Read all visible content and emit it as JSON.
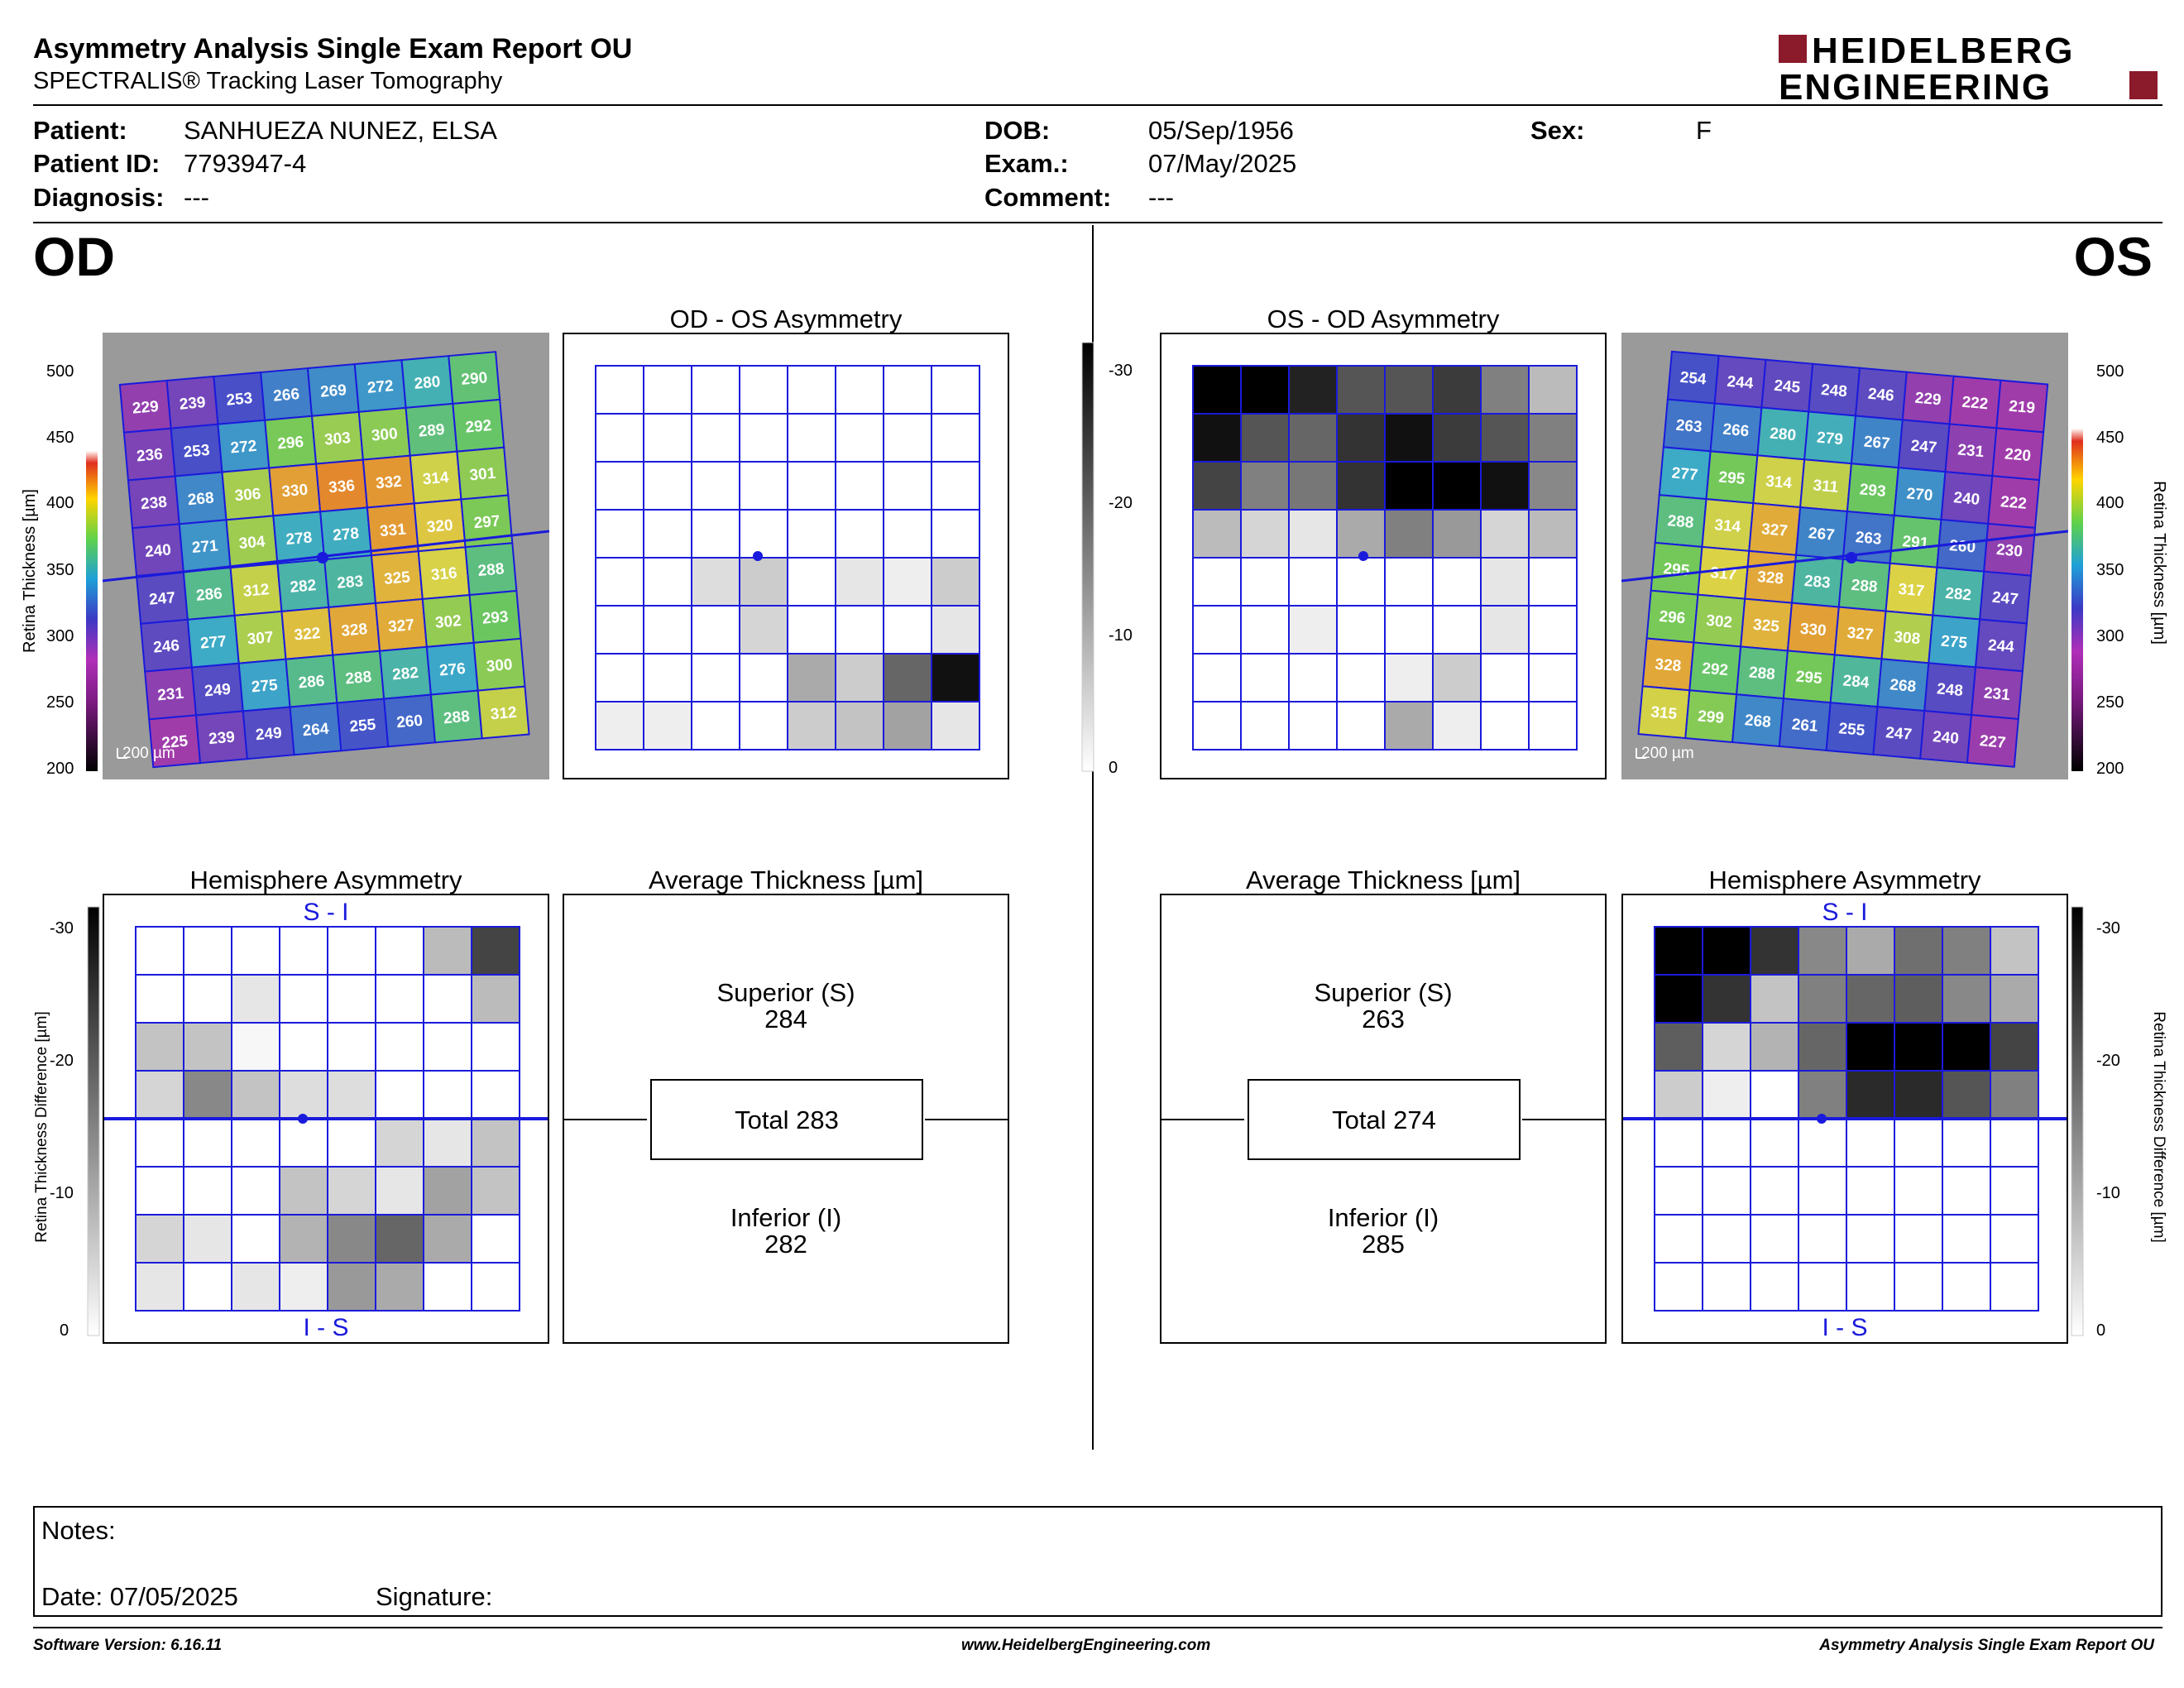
{
  "header": {
    "title": "Asymmetry Analysis Single Exam Report OU",
    "subtitle": "SPECTRALIS® Tracking Laser Tomography",
    "logo_line1": "HEIDELBERG",
    "logo_line2": "ENGINEERING"
  },
  "patient": {
    "patient_label": "Patient:",
    "patient_value": "SANHUEZA NUNEZ, ELSA",
    "id_label": "Patient ID:",
    "id_value": "7793947-4",
    "diagnosis_label": "Diagnosis:",
    "diagnosis_value": "---",
    "dob_label": "DOB:",
    "dob_value": "05/Sep/1956",
    "exam_label": "Exam.:",
    "exam_value": "07/May/2025",
    "comment_label": "Comment:",
    "comment_value": "---",
    "sex_label": "Sex:",
    "sex_value": "F"
  },
  "eyes": {
    "od": "OD",
    "os": "OS"
  },
  "panels": {
    "od_os_title": "OD - OS Asymmetry",
    "os_od_title": "OS - OD Asymmetry",
    "hemi_title": "Hemisphere Asymmetry",
    "avg_title": "Average Thickness [µm]",
    "si_label": "S - I",
    "is_label": "I - S",
    "scale_label": "200 µm"
  },
  "scales": {
    "thickness_axis_label": "Retina Thickness [µm]",
    "thickness_ticks": [
      "500",
      "450",
      "400",
      "350",
      "300",
      "250",
      "200"
    ],
    "diff_axis_label": "Retina Thickness Difference [µm]",
    "diff_ticks": [
      "-30",
      "-20",
      "-10",
      "0"
    ]
  },
  "od_thickness_grid": [
    [
      "229",
      "239",
      "253",
      "266",
      "269",
      "272",
      "280",
      "290"
    ],
    [
      "236",
      "253",
      "272",
      "296",
      "303",
      "300",
      "289",
      "292"
    ],
    [
      "238",
      "268",
      "306",
      "330",
      "336",
      "332",
      "314",
      "301"
    ],
    [
      "240",
      "271",
      "304",
      "278",
      "278",
      "331",
      "320",
      "297"
    ],
    [
      "247",
      "286",
      "312",
      "282",
      "283",
      "325",
      "316",
      "288"
    ],
    [
      "246",
      "277",
      "307",
      "322",
      "328",
      "327",
      "302",
      "293"
    ],
    [
      "231",
      "249",
      "275",
      "286",
      "288",
      "282",
      "276",
      "300"
    ],
    [
      "225",
      "239",
      "249",
      "264",
      "255",
      "260",
      "288",
      "312"
    ]
  ],
  "os_thickness_grid": [
    [
      "254",
      "244",
      "245",
      "248",
      "246",
      "229",
      "222",
      "219"
    ],
    [
      "263",
      "266",
      "280",
      "279",
      "267",
      "247",
      "231",
      "220"
    ],
    [
      "277",
      "295",
      "314",
      "311",
      "293",
      "270",
      "240",
      "222"
    ],
    [
      "288",
      "314",
      "327",
      "267",
      "263",
      "291",
      "260",
      "230"
    ],
    [
      "295",
      "317",
      "328",
      "283",
      "288",
      "317",
      "282",
      "247"
    ],
    [
      "296",
      "302",
      "325",
      "330",
      "327",
      "308",
      "275",
      "244"
    ],
    [
      "328",
      "292",
      "288",
      "295",
      "284",
      "268",
      "248",
      "231"
    ],
    [
      "315",
      "299",
      "268",
      "261",
      "255",
      "247",
      "240",
      "227"
    ]
  ],
  "od_os_diff": [
    [
      0,
      0,
      0,
      0,
      0,
      0,
      0,
      0
    ],
    [
      0,
      0,
      0,
      0,
      0,
      0,
      0,
      0
    ],
    [
      0,
      0,
      0,
      0,
      0,
      0,
      0,
      0
    ],
    [
      0,
      0,
      0,
      0,
      0,
      0,
      0,
      0
    ],
    [
      0,
      0,
      4,
      6,
      0,
      3,
      2,
      6
    ],
    [
      0,
      0,
      0,
      5,
      0,
      0,
      0,
      3
    ],
    [
      0,
      0,
      0,
      0,
      10,
      6,
      18,
      28
    ],
    [
      2,
      2,
      0,
      0,
      6,
      7,
      11,
      3
    ]
  ],
  "os_od_diff": [
    [
      30,
      30,
      26,
      20,
      20,
      23,
      15,
      8
    ],
    [
      28,
      20,
      18,
      24,
      28,
      23,
      20,
      15
    ],
    [
      22,
      15,
      16,
      24,
      30,
      30,
      28,
      14
    ],
    [
      8,
      5,
      3,
      10,
      15,
      12,
      5,
      8
    ],
    [
      0,
      0,
      0,
      0,
      0,
      0,
      3,
      0
    ],
    [
      0,
      0,
      2,
      0,
      0,
      0,
      3,
      0
    ],
    [
      0,
      0,
      0,
      0,
      2,
      6,
      0,
      0
    ],
    [
      0,
      0,
      0,
      0,
      10,
      2,
      0,
      0
    ]
  ],
  "od_hemi_diff": [
    [
      0,
      0,
      0,
      0,
      0,
      0,
      8,
      22
    ],
    [
      0,
      0,
      3,
      0,
      0,
      0,
      0,
      8
    ],
    [
      7,
      7,
      1,
      0,
      0,
      0,
      0,
      0
    ],
    [
      5,
      14,
      7,
      4,
      4,
      0,
      0,
      0
    ],
    [
      0,
      0,
      0,
      0,
      0,
      5,
      3,
      7
    ],
    [
      0,
      0,
      0,
      7,
      5,
      3,
      11,
      7
    ],
    [
      5,
      3,
      0,
      9,
      14,
      18,
      10,
      0
    ],
    [
      3,
      0,
      3,
      2,
      12,
      10,
      0,
      0
    ]
  ],
  "os_hemi_diff": [
    [
      30,
      30,
      24,
      14,
      10,
      17,
      15,
      7
    ],
    [
      30,
      24,
      7,
      15,
      18,
      19,
      14,
      10
    ],
    [
      19,
      5,
      9,
      18,
      30,
      30,
      30,
      22
    ],
    [
      6,
      2,
      0,
      15,
      25,
      25,
      20,
      15
    ],
    [
      0,
      0,
      0,
      0,
      0,
      0,
      0,
      0
    ],
    [
      0,
      0,
      0,
      0,
      0,
      0,
      0,
      0
    ],
    [
      0,
      0,
      0,
      0,
      0,
      0,
      0,
      0
    ],
    [
      0,
      0,
      0,
      0,
      0,
      0,
      0,
      0
    ]
  ],
  "od_avg": {
    "superior_label": "Superior (S)",
    "superior": "284",
    "total": "Total 283",
    "inferior_label": "Inferior (I)",
    "inferior": "282"
  },
  "os_avg": {
    "superior_label": "Superior (S)",
    "superior": "263",
    "total": "Total 274",
    "inferior_label": "Inferior (I)",
    "inferior": "285"
  },
  "notes": {
    "notes_label": "Notes:",
    "date_label": "Date: 07/05/2025",
    "signature_label": "Signature:"
  },
  "footer": {
    "software": "Software Version: 6.16.11",
    "website": "www.HeidelbergEngineering.com",
    "report": "Asymmetry Analysis Single Exam Report OU"
  },
  "colors": {
    "grid_blue": "#1a1adc",
    "logo_red": "#8b1a2b"
  }
}
